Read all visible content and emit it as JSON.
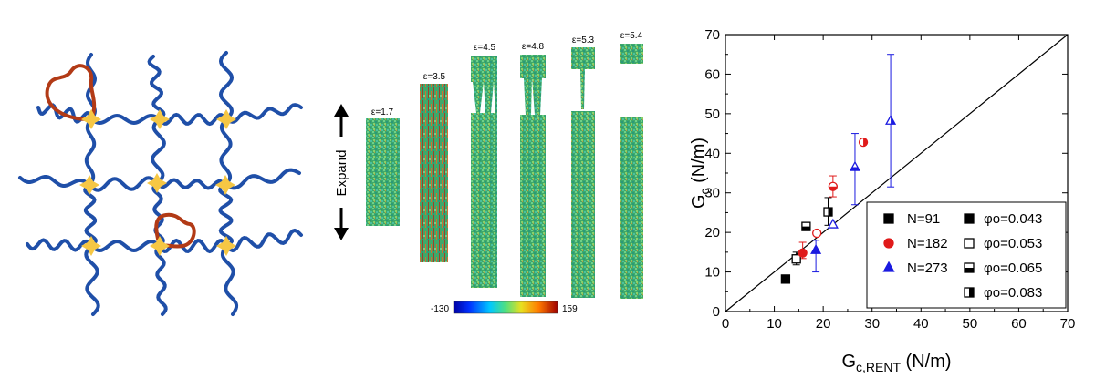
{
  "panel_b": {
    "expand_label": "Expand",
    "snapshots": [
      {
        "label": "ε=1.7"
      },
      {
        "label": "ε=3.5"
      },
      {
        "label": "ε=4.5"
      },
      {
        "label": "ε=4.8"
      },
      {
        "label": "ε=5.3"
      },
      {
        "label": "ε=5.4"
      }
    ],
    "colorbar": {
      "min": "-130",
      "max": "159"
    }
  },
  "colors": {
    "chain": "#1f4fa8",
    "loop": "#b23a16",
    "crosslink": "#f6c744",
    "black": "#000000",
    "red": "#e01a1a",
    "blue": "#1a1ae0"
  },
  "chart_data": {
    "type": "scatter",
    "xlabel_main": "G",
    "xlabel_sub": "c,RENT",
    "xlabel_unit": " (N/m)",
    "ylabel_main": "G",
    "ylabel_sub": "c",
    "ylabel_unit": " (N/m)",
    "xlim": [
      0,
      70
    ],
    "ylim": [
      0,
      70
    ],
    "xticks": [
      "0",
      "10",
      "20",
      "30",
      "40",
      "50",
      "60",
      "70"
    ],
    "yticks": [
      "0",
      "10",
      "20",
      "30",
      "40",
      "50",
      "60",
      "70"
    ],
    "diagonal": true,
    "legend_position": "bottom-right",
    "legend_chain": [
      {
        "label": "N=91",
        "marker": "square",
        "color": "#000000"
      },
      {
        "label": "N=182",
        "marker": "circle",
        "color": "#e01a1a"
      },
      {
        "label": "N=273",
        "marker": "triangle",
        "color": "#1a1ae0"
      }
    ],
    "legend_phi": [
      {
        "label": "φo=0.043",
        "fill": "full"
      },
      {
        "label": "φo=0.053",
        "fill": "none"
      },
      {
        "label": "φo=0.065",
        "fill": "bottom"
      },
      {
        "label": "φo=0.083",
        "fill": "right"
      }
    ],
    "points": [
      {
        "series": "N=91",
        "x": 12.3,
        "y": 8.2,
        "fill": "full"
      },
      {
        "series": "N=91",
        "x": 14.5,
        "y": 13.3,
        "fill": "none",
        "err": [
          11.8,
          15.0
        ]
      },
      {
        "series": "N=91",
        "x": 16.5,
        "y": 21.5,
        "fill": "bottom"
      },
      {
        "series": "N=91",
        "x": 21.0,
        "y": 25.2,
        "fill": "right",
        "err": [
          21.8,
          28.8
        ]
      },
      {
        "series": "N=182",
        "x": 15.8,
        "y": 14.8,
        "fill": "full",
        "err": [
          13.4,
          17.5
        ]
      },
      {
        "series": "N=182",
        "x": 18.7,
        "y": 19.8,
        "fill": "none"
      },
      {
        "series": "N=182",
        "x": 22.0,
        "y": 31.6,
        "fill": "bottom",
        "err": [
          29.0,
          34.3
        ]
      },
      {
        "series": "N=182",
        "x": 28.2,
        "y": 42.8,
        "fill": "right"
      },
      {
        "series": "N=273",
        "x": 18.5,
        "y": 15.5,
        "fill": "full",
        "err": [
          10.0,
          18.0
        ]
      },
      {
        "series": "N=273",
        "x": 22.0,
        "y": 22.0,
        "fill": "none"
      },
      {
        "series": "N=273",
        "x": 26.5,
        "y": 36.5,
        "fill": "bottom",
        "err": [
          27.0,
          45.0
        ]
      },
      {
        "series": "N=273",
        "x": 33.8,
        "y": 48.2,
        "fill": "right",
        "err": [
          31.5,
          65.0
        ]
      }
    ]
  }
}
